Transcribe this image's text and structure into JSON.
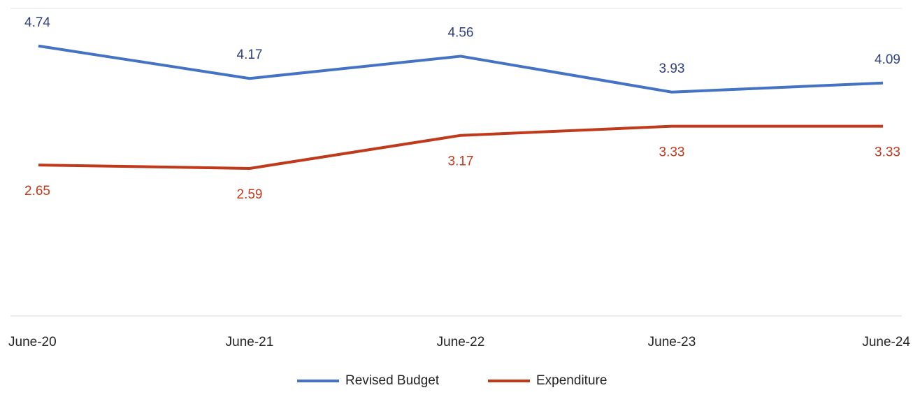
{
  "chart_data": {
    "type": "line",
    "categories": [
      "June-20",
      "June-21",
      "June-22",
      "June-23",
      "June-24"
    ],
    "series": [
      {
        "name": "Revised Budget",
        "color": "#4472c4",
        "values": [
          4.74,
          4.17,
          4.56,
          3.93,
          4.09
        ]
      },
      {
        "name": "Expenditure",
        "color": "#c0391b",
        "values": [
          2.65,
          2.59,
          3.17,
          3.33,
          3.33
        ]
      }
    ],
    "ylim": [
      0,
      5.4
    ],
    "legend": "bottom"
  }
}
